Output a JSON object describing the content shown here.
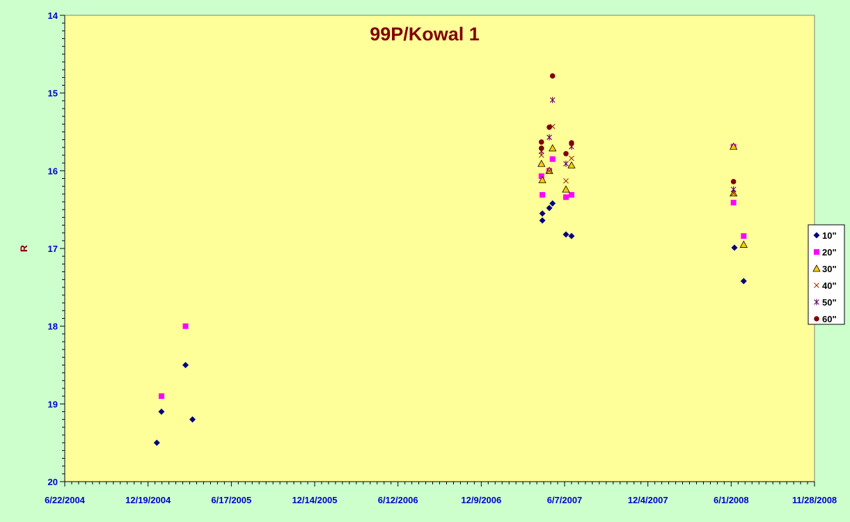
{
  "chart_data": {
    "type": "scatter",
    "title": "99P/Kowal 1",
    "xlabel": "",
    "ylabel": "R",
    "x_axis_type": "date",
    "xlim": [
      "2004-06-22",
      "2008-11-28"
    ],
    "ylim": [
      14,
      20
    ],
    "y_reversed": true,
    "x_ticks": [
      "6/22/2004",
      "12/19/2004",
      "6/17/2005",
      "12/14/2005",
      "6/12/2006",
      "12/9/2006",
      "6/7/2007",
      "12/4/2007",
      "6/1/2008",
      "11/28/2008"
    ],
    "y_ticks": [
      "14",
      "15",
      "16",
      "17",
      "18",
      "19",
      "20"
    ],
    "legend_position": "right",
    "grid": false,
    "colors": {
      "page_background": "#ccffcc",
      "plot_background": "#ffff99",
      "axis_labels": "#0000cc",
      "title": "#800000"
    },
    "series": [
      {
        "name": "10\"",
        "marker": "diamond",
        "color": "#000080",
        "points": [
          [
            "2005-01-07",
            19.5
          ],
          [
            "2005-01-17",
            19.1
          ],
          [
            "2005-03-10",
            18.5
          ],
          [
            "2005-03-25",
            19.2
          ],
          [
            "2007-04-20",
            16.55
          ],
          [
            "2007-04-20",
            16.64
          ],
          [
            "2007-05-05",
            16.48
          ],
          [
            "2007-05-12",
            16.42
          ],
          [
            "2007-06-10",
            16.82
          ],
          [
            "2007-06-22",
            16.84
          ],
          [
            "2008-06-08",
            16.99
          ],
          [
            "2008-06-28",
            17.42
          ]
        ]
      },
      {
        "name": "20\"",
        "marker": "square",
        "color": "#ff00ff",
        "points": [
          [
            "2005-01-17",
            18.9
          ],
          [
            "2005-03-10",
            18.0
          ],
          [
            "2007-04-18",
            16.07
          ],
          [
            "2007-04-20",
            16.31
          ],
          [
            "2007-05-05",
            16.0
          ],
          [
            "2007-05-12",
            15.85
          ],
          [
            "2007-06-10",
            16.34
          ],
          [
            "2007-06-22",
            16.31
          ],
          [
            "2008-06-06",
            15.69
          ],
          [
            "2008-06-06",
            16.41
          ],
          [
            "2008-06-28",
            16.84
          ]
        ]
      },
      {
        "name": "30\"",
        "marker": "triangle",
        "color": "#ffcc00",
        "points": [
          [
            "2007-04-18",
            15.91
          ],
          [
            "2007-04-20",
            16.12
          ],
          [
            "2007-05-05",
            16.0
          ],
          [
            "2007-05-12",
            15.71
          ],
          [
            "2007-06-10",
            16.24
          ],
          [
            "2007-06-22",
            15.93
          ],
          [
            "2008-06-06",
            15.69
          ],
          [
            "2008-06-06",
            16.29
          ],
          [
            "2008-06-28",
            16.95
          ]
        ]
      },
      {
        "name": "40\"",
        "marker": "x",
        "color": "#993300",
        "points": [
          [
            "2007-04-18",
            15.8
          ],
          [
            "2007-05-05",
            16.0
          ],
          [
            "2007-05-12",
            15.43
          ],
          [
            "2007-06-10",
            16.13
          ],
          [
            "2007-06-22",
            15.84
          ],
          [
            "2008-06-06",
            16.29
          ]
        ]
      },
      {
        "name": "50\"",
        "marker": "star",
        "color": "#660066",
        "points": [
          [
            "2007-04-18",
            15.75
          ],
          [
            "2007-05-05",
            15.57
          ],
          [
            "2007-05-12",
            15.09
          ],
          [
            "2007-06-10",
            15.91
          ],
          [
            "2007-06-22",
            15.69
          ],
          [
            "2008-06-06",
            16.24
          ]
        ]
      },
      {
        "name": "60\"",
        "marker": "circle",
        "color": "#800000",
        "points": [
          [
            "2007-04-18",
            15.63
          ],
          [
            "2007-04-18",
            15.71
          ],
          [
            "2007-05-05",
            15.44
          ],
          [
            "2007-05-12",
            14.78
          ],
          [
            "2007-06-10",
            15.78
          ],
          [
            "2007-06-22",
            15.64
          ],
          [
            "2008-06-06",
            16.14
          ]
        ]
      }
    ]
  }
}
